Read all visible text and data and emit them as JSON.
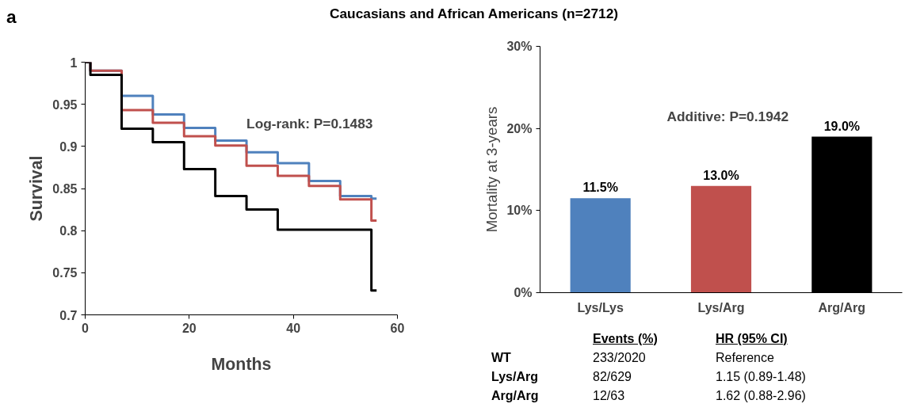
{
  "chart_data": [
    {
      "type": "step",
      "title": "Caucasians and African Americans (n=2712)",
      "xlabel": "Months",
      "ylabel": "Survival",
      "xlim": [
        0,
        60
      ],
      "xticks": [
        0,
        20,
        40,
        60
      ],
      "ylim": [
        0.7,
        1
      ],
      "yticks": [
        0.7,
        0.75,
        0.8,
        0.85,
        0.9,
        0.95,
        1
      ],
      "grid": false,
      "annotations": [
        "a",
        "Log-rank: P=0.1483"
      ],
      "x": [
        0,
        1,
        7,
        13,
        19,
        25,
        31,
        37,
        43,
        49,
        55,
        56
      ],
      "series": [
        {
          "color": "#4f81bd",
          "values": [
            1,
            0.99,
            0.96,
            0.938,
            0.922,
            0.907,
            0.893,
            0.88,
            0.859,
            0.841,
            0.838,
            0.838
          ]
        },
        {
          "color": "#c0504d",
          "values": [
            1,
            0.99,
            0.943,
            0.928,
            0.912,
            0.901,
            0.877,
            0.865,
            0.853,
            0.837,
            0.812,
            0.812
          ]
        },
        {
          "color": "#000000",
          "values": [
            1,
            0.985,
            0.921,
            0.905,
            0.873,
            0.841,
            0.825,
            0.801,
            0.801,
            0.801,
            0.729,
            0.729
          ]
        }
      ]
    },
    {
      "type": "bar",
      "ylabel": "Mortality at 3-years",
      "categories": [
        "Lys/Lys",
        "Lys/Arg",
        "Arg/Arg"
      ],
      "values": [
        11.5,
        13.0,
        19.0
      ],
      "colors": [
        "#4f81bd",
        "#c0504d",
        "#000000"
      ],
      "value_labels": [
        "11.5%",
        "13.0%",
        "19.0%"
      ],
      "ylim": [
        0,
        30
      ],
      "yticks": [
        {
          "value": 0,
          "label": "0%"
        },
        {
          "value": 10,
          "label": "10%"
        },
        {
          "value": 20,
          "label": "20%"
        },
        {
          "value": 30,
          "label": "30%"
        }
      ],
      "grid": false,
      "annotations": [
        "Additive: P=0.1942",
        "Events (%)",
        "HR (95% CI)",
        "WT",
        "233/2020",
        "Reference",
        "Lys/Arg",
        "82/629",
        "1.15 (0.89-1.48)",
        "Arg/Arg",
        "12/63",
        "1.62 (0.88-2.96)"
      ]
    }
  ]
}
